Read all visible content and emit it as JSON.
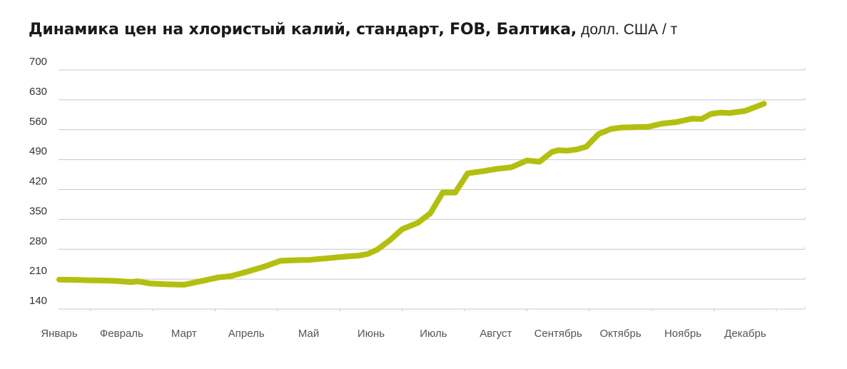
{
  "chart_data": {
    "type": "line",
    "title": "Динамика цен на хлористый калий, стандарт, FOB, Балтика,",
    "unit": "долл. США / т",
    "xlabel": "",
    "ylabel": "",
    "ylim": [
      140,
      700
    ],
    "y_ticks": [
      140,
      210,
      280,
      350,
      420,
      490,
      560,
      630,
      700
    ],
    "categories": [
      "Январь",
      "Февраль",
      "Март",
      "Апрель",
      "Май",
      "Июнь",
      "Июль",
      "Август",
      "Сентябрь",
      "Октябрь",
      "Ноябрь",
      "Декабрь"
    ],
    "grid": true,
    "line_color": "#b3bf0f",
    "series": [
      {
        "x": [
          0,
          0.3,
          0.6,
          0.9,
          1.0,
          1.15,
          1.25,
          1.45,
          1.7,
          2.0,
          2.2,
          2.55,
          2.75,
          3.0,
          3.3,
          3.55,
          3.9,
          4.0,
          4.3,
          4.6,
          4.8,
          4.95,
          5.1,
          5.3,
          5.5,
          5.75,
          5.95,
          6.15,
          6.35,
          6.55,
          6.8,
          7.0,
          7.25,
          7.5,
          7.7,
          7.9,
          8.0,
          8.15,
          8.3,
          8.45,
          8.65,
          8.85,
          9.0,
          9.2,
          9.45,
          9.65,
          9.9,
          10.15,
          10.3,
          10.45,
          10.6,
          10.75,
          11.0,
          11.3
        ],
        "values": [
          209,
          208,
          207,
          206,
          205,
          203,
          205,
          200,
          198,
          197,
          203,
          214,
          217,
          227,
          240,
          253,
          255,
          255,
          259,
          263,
          265,
          269,
          279,
          301,
          327,
          342,
          364,
          413,
          413,
          458,
          463,
          468,
          472,
          488,
          485,
          508,
          512,
          511,
          514,
          520,
          550,
          562,
          565,
          566,
          567,
          574,
          578,
          586,
          585,
          597,
          600,
          599,
          604,
          621
        ]
      }
    ]
  }
}
